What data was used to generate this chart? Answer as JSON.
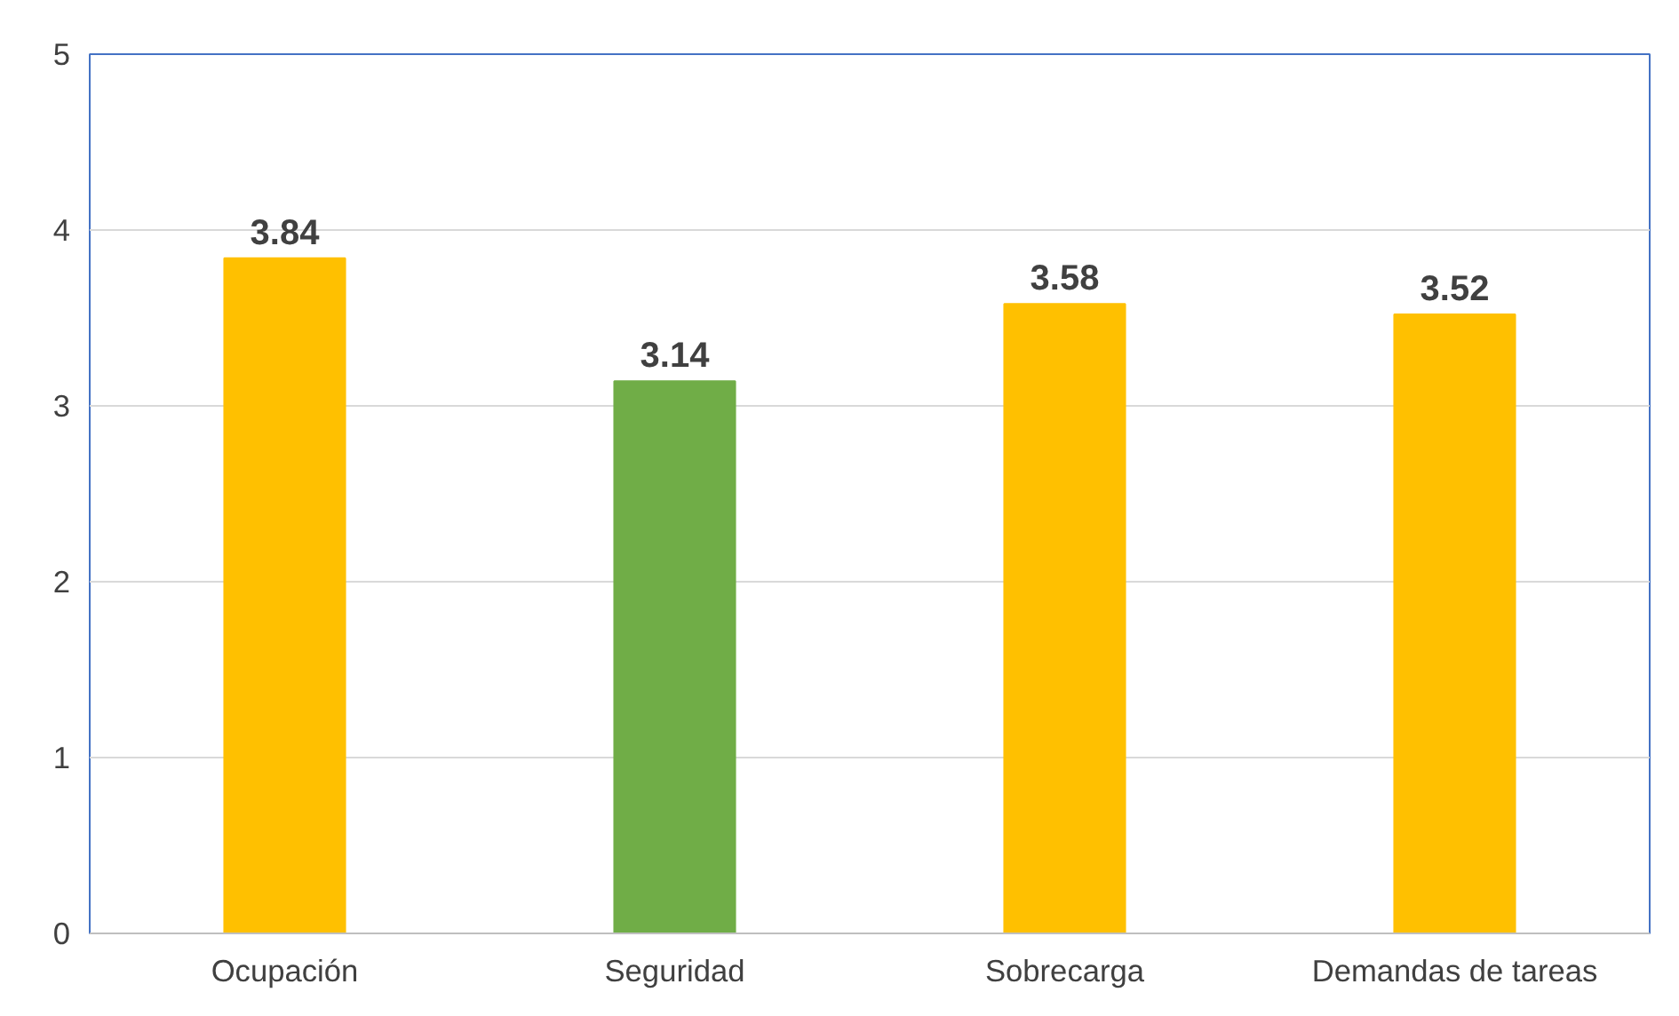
{
  "chart_data": {
    "type": "bar",
    "categories": [
      "Ocupación",
      "Seguridad",
      "Sobrecarga",
      "Demandas de tareas"
    ],
    "values": [
      3.84,
      3.14,
      3.58,
      3.52
    ],
    "colors": [
      "#ffc000",
      "#70ad47",
      "#ffc000",
      "#ffc000"
    ],
    "ylim": [
      0,
      5
    ],
    "yticks": [
      0,
      1,
      2,
      3,
      4,
      5
    ],
    "grid": "y",
    "data_labels": true
  }
}
